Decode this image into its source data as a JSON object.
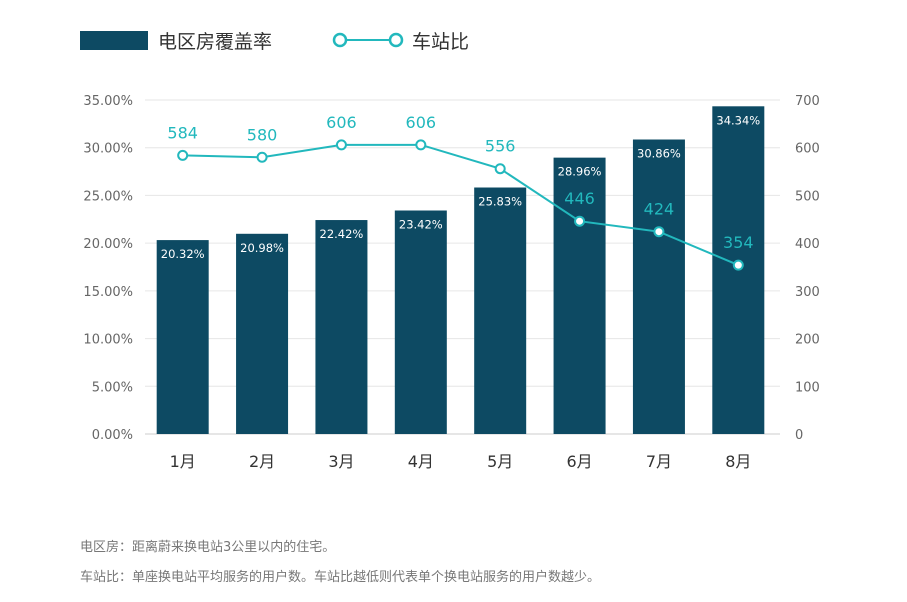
{
  "chart_data": {
    "type": "bar+line",
    "categories": [
      "1月",
      "2月",
      "3月",
      "4月",
      "5月",
      "6月",
      "7月",
      "8月"
    ],
    "series": [
      {
        "name": "电区房覆盖率",
        "type": "bar",
        "axis": "left",
        "values": [
          20.32,
          20.98,
          22.42,
          23.42,
          25.83,
          28.96,
          30.86,
          34.34
        ],
        "labels": [
          "20.32%",
          "20.98%",
          "22.42%",
          "23.42%",
          "25.83%",
          "28.96%",
          "30.86%",
          "34.34%"
        ],
        "color": "#0d4a63"
      },
      {
        "name": "车站比",
        "type": "line",
        "axis": "right",
        "values": [
          584,
          580,
          606,
          606,
          556,
          446,
          424,
          354
        ],
        "color": "#22b8bd"
      }
    ],
    "y_left": {
      "range": [
        0,
        35
      ],
      "ticks": [
        "0.00%",
        "5.00%",
        "10.00%",
        "15.00%",
        "20.00%",
        "25.00%",
        "30.00%",
        "35.00%"
      ]
    },
    "y_right": {
      "range": [
        0,
        700
      ],
      "ticks": [
        "0",
        "100",
        "200",
        "300",
        "400",
        "500",
        "600",
        "700"
      ]
    },
    "grid": true,
    "legend": "top-left"
  },
  "notes": [
    "电区房：距离蔚来换电站3公里以内的住宅。",
    "车站比：单座换电站平均服务的用户数。车站比越低则代表单个换电站服务的用户数越少。"
  ]
}
